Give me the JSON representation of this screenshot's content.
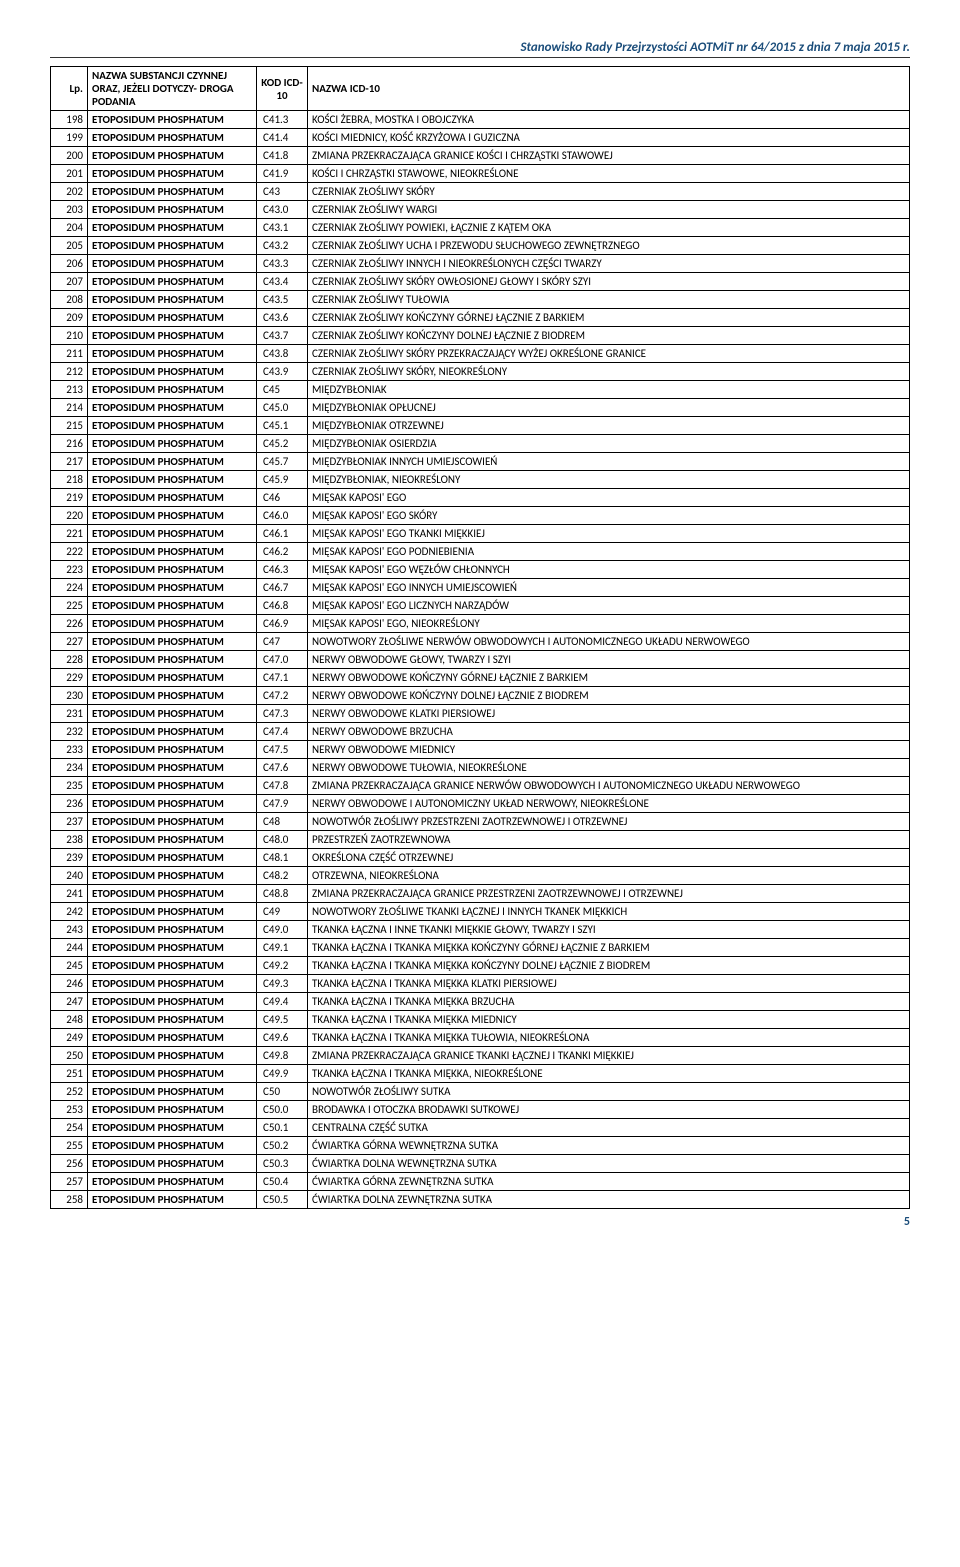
{
  "header": "Stanowisko Rady Przejrzystości AOTMiT nr 64/2015 z dnia 7 maja 2015 r.",
  "pageNumber": "5",
  "columns": {
    "lp": "Lp.",
    "substance": "NAZWA SUBSTANCJI CZYNNEJ ORAZ, JEŻELI DOTYCZY- DROGA PODANIA",
    "icd": "KOD ICD-10",
    "name": "NAZWA ICD-10"
  },
  "rows": [
    {
      "lp": "198",
      "sub": "ETOPOSIDUM PHOSPHATUM",
      "icd": "C41.3",
      "name": "KOŚCI ŻEBRA, MOSTKA I OBOJCZYKA"
    },
    {
      "lp": "199",
      "sub": "ETOPOSIDUM PHOSPHATUM",
      "icd": "C41.4",
      "name": "KOŚCI MIEDNICY, KOŚĆ KRZYŻOWA I GUZICZNA"
    },
    {
      "lp": "200",
      "sub": "ETOPOSIDUM PHOSPHATUM",
      "icd": "C41.8",
      "name": "ZMIANA PRZEKRACZAJĄCA GRANICE KOŚCI I CHRZĄSTKI STAWOWEJ"
    },
    {
      "lp": "201",
      "sub": "ETOPOSIDUM PHOSPHATUM",
      "icd": "C41.9",
      "name": "KOŚCI I CHRZĄSTKI STAWOWE, NIEOKREŚLONE"
    },
    {
      "lp": "202",
      "sub": "ETOPOSIDUM PHOSPHATUM",
      "icd": "C43",
      "name": "CZERNIAK ZŁOŚLIWY SKÓRY"
    },
    {
      "lp": "203",
      "sub": "ETOPOSIDUM PHOSPHATUM",
      "icd": "C43.0",
      "name": "CZERNIAK ZŁOŚLIWY WARGI"
    },
    {
      "lp": "204",
      "sub": "ETOPOSIDUM PHOSPHATUM",
      "icd": "C43.1",
      "name": "CZERNIAK ZŁOŚLIWY POWIEKI, ŁĄCZNIE Z KĄTEM OKA"
    },
    {
      "lp": "205",
      "sub": "ETOPOSIDUM PHOSPHATUM",
      "icd": "C43.2",
      "name": "CZERNIAK ZŁOŚLIWY UCHA I PRZEWODU SŁUCHOWEGO ZEWNĘTRZNEGO"
    },
    {
      "lp": "206",
      "sub": "ETOPOSIDUM PHOSPHATUM",
      "icd": "C43.3",
      "name": "CZERNIAK ZŁOŚLIWY INNYCH I NIEOKREŚLONYCH CZĘŚCI TWARZY"
    },
    {
      "lp": "207",
      "sub": "ETOPOSIDUM PHOSPHATUM",
      "icd": "C43.4",
      "name": "CZERNIAK ZŁOŚLIWY SKÓRY OWŁOSIONEJ GŁOWY I SKÓRY SZYI"
    },
    {
      "lp": "208",
      "sub": "ETOPOSIDUM PHOSPHATUM",
      "icd": "C43.5",
      "name": "CZERNIAK ZŁOŚLIWY TUŁOWIA"
    },
    {
      "lp": "209",
      "sub": "ETOPOSIDUM PHOSPHATUM",
      "icd": "C43.6",
      "name": "CZERNIAK ZŁOŚLIWY KOŃCZYNY GÓRNEJ ŁĄCZNIE Z BARKIEM"
    },
    {
      "lp": "210",
      "sub": "ETOPOSIDUM PHOSPHATUM",
      "icd": "C43.7",
      "name": "CZERNIAK ZŁOŚLIWY KOŃCZYNY DOLNEJ ŁĄCZNIE Z BIODREM"
    },
    {
      "lp": "211",
      "sub": "ETOPOSIDUM PHOSPHATUM",
      "icd": "C43.8",
      "name": "CZERNIAK ZŁOŚLIWY SKÓRY PRZEKRACZAJĄCY WYŻEJ OKREŚLONE GRANICE"
    },
    {
      "lp": "212",
      "sub": "ETOPOSIDUM PHOSPHATUM",
      "icd": "C43.9",
      "name": "CZERNIAK ZŁOŚLIWY SKÓRY, NIEOKREŚLONY"
    },
    {
      "lp": "213",
      "sub": "ETOPOSIDUM PHOSPHATUM",
      "icd": "C45",
      "name": "MIĘDZYBŁONIAK"
    },
    {
      "lp": "214",
      "sub": "ETOPOSIDUM PHOSPHATUM",
      "icd": "C45.0",
      "name": "MIĘDZYBŁONIAK OPŁUCNEJ"
    },
    {
      "lp": "215",
      "sub": "ETOPOSIDUM PHOSPHATUM",
      "icd": "C45.1",
      "name": "MIĘDZYBŁONIAK OTRZEWNEJ"
    },
    {
      "lp": "216",
      "sub": "ETOPOSIDUM PHOSPHATUM",
      "icd": "C45.2",
      "name": "MIĘDZYBŁONIAK OSIERDZIA"
    },
    {
      "lp": "217",
      "sub": "ETOPOSIDUM PHOSPHATUM",
      "icd": "C45.7",
      "name": "MIĘDZYBŁONIAK INNYCH UMIEJSCOWIEŃ"
    },
    {
      "lp": "218",
      "sub": "ETOPOSIDUM PHOSPHATUM",
      "icd": "C45.9",
      "name": "MIĘDZYBŁONIAK, NIEOKREŚLONY"
    },
    {
      "lp": "219",
      "sub": "ETOPOSIDUM PHOSPHATUM",
      "icd": "C46",
      "name": "MIĘSAK KAPOSI' EGO"
    },
    {
      "lp": "220",
      "sub": "ETOPOSIDUM PHOSPHATUM",
      "icd": "C46.0",
      "name": "MIĘSAK KAPOSI' EGO SKÓRY"
    },
    {
      "lp": "221",
      "sub": "ETOPOSIDUM PHOSPHATUM",
      "icd": "C46.1",
      "name": "MIĘSAK KAPOSI' EGO TKANKI MIĘKKIEJ"
    },
    {
      "lp": "222",
      "sub": "ETOPOSIDUM PHOSPHATUM",
      "icd": "C46.2",
      "name": "MIĘSAK KAPOSI' EGO PODNIEBIENIA"
    },
    {
      "lp": "223",
      "sub": "ETOPOSIDUM PHOSPHATUM",
      "icd": "C46.3",
      "name": "MIĘSAK KAPOSI' EGO WĘZŁÓW CHŁONNYCH"
    },
    {
      "lp": "224",
      "sub": "ETOPOSIDUM PHOSPHATUM",
      "icd": "C46.7",
      "name": "MIĘSAK KAPOSI' EGO INNYCH UMIEJSCOWIEŃ"
    },
    {
      "lp": "225",
      "sub": "ETOPOSIDUM PHOSPHATUM",
      "icd": "C46.8",
      "name": "MIĘSAK KAPOSI' EGO LICZNYCH NARZĄDÓW"
    },
    {
      "lp": "226",
      "sub": "ETOPOSIDUM PHOSPHATUM",
      "icd": "C46.9",
      "name": "MIĘSAK KAPOSI' EGO, NIEOKREŚLONY"
    },
    {
      "lp": "227",
      "sub": "ETOPOSIDUM PHOSPHATUM",
      "icd": "C47",
      "name": "NOWOTWORY ZŁOŚLIWE NERWÓW OBWODOWYCH I AUTONOMICZNEGO UKŁADU NERWOWEGO"
    },
    {
      "lp": "228",
      "sub": "ETOPOSIDUM PHOSPHATUM",
      "icd": "C47.0",
      "name": "NERWY OBWODOWE GŁOWY, TWARZY I SZYI"
    },
    {
      "lp": "229",
      "sub": "ETOPOSIDUM PHOSPHATUM",
      "icd": "C47.1",
      "name": "NERWY OBWODOWE KOŃCZYNY GÓRNEJ ŁĄCZNIE Z BARKIEM"
    },
    {
      "lp": "230",
      "sub": "ETOPOSIDUM PHOSPHATUM",
      "icd": "C47.2",
      "name": "NERWY OBWODOWE KOŃCZYNY DOLNEJ ŁĄCZNIE Z BIODREM"
    },
    {
      "lp": "231",
      "sub": "ETOPOSIDUM PHOSPHATUM",
      "icd": "C47.3",
      "name": "NERWY OBWODOWE KLATKI PIERSIOWEJ"
    },
    {
      "lp": "232",
      "sub": "ETOPOSIDUM PHOSPHATUM",
      "icd": "C47.4",
      "name": "NERWY OBWODOWE BRZUCHA"
    },
    {
      "lp": "233",
      "sub": "ETOPOSIDUM PHOSPHATUM",
      "icd": "C47.5",
      "name": "NERWY OBWODOWE MIEDNICY"
    },
    {
      "lp": "234",
      "sub": "ETOPOSIDUM PHOSPHATUM",
      "icd": "C47.6",
      "name": "NERWY OBWODOWE TUŁOWIA, NIEOKREŚLONE"
    },
    {
      "lp": "235",
      "sub": "ETOPOSIDUM PHOSPHATUM",
      "icd": "C47.8",
      "name": "ZMIANA PRZEKRACZAJĄCA GRANICE NERWÓW OBWODOWYCH I AUTONOMICZNEGO UKŁADU NERWOWEGO"
    },
    {
      "lp": "236",
      "sub": "ETOPOSIDUM PHOSPHATUM",
      "icd": "C47.9",
      "name": "NERWY OBWODOWE I AUTONOMICZNY UKŁAD NERWOWY, NIEOKREŚLONE"
    },
    {
      "lp": "237",
      "sub": "ETOPOSIDUM PHOSPHATUM",
      "icd": "C48",
      "name": "NOWOTWÓR ZŁOŚLIWY PRZESTRZENI ZAOTRZEWNOWEJ I OTRZEWNEJ"
    },
    {
      "lp": "238",
      "sub": "ETOPOSIDUM PHOSPHATUM",
      "icd": "C48.0",
      "name": "PRZESTRZEŃ ZAOTRZEWNOWA"
    },
    {
      "lp": "239",
      "sub": "ETOPOSIDUM PHOSPHATUM",
      "icd": "C48.1",
      "name": "OKREŚLONA CZĘŚĆ OTRZEWNEJ"
    },
    {
      "lp": "240",
      "sub": "ETOPOSIDUM PHOSPHATUM",
      "icd": "C48.2",
      "name": "OTRZEWNA, NIEOKREŚLONA"
    },
    {
      "lp": "241",
      "sub": "ETOPOSIDUM PHOSPHATUM",
      "icd": "C48.8",
      "name": "ZMIANA PRZEKRACZAJĄCA GRANICE PRZESTRZENI ZAOTRZEWNOWEJ I OTRZEWNEJ"
    },
    {
      "lp": "242",
      "sub": "ETOPOSIDUM PHOSPHATUM",
      "icd": "C49",
      "name": "NOWOTWORY ZŁOŚLIWE TKANKI ŁĄCZNEJ I INNYCH TKANEK MIĘKKICH"
    },
    {
      "lp": "243",
      "sub": "ETOPOSIDUM PHOSPHATUM",
      "icd": "C49.0",
      "name": "TKANKA ŁĄCZNA I INNE TKANKI MIĘKKIE GŁOWY, TWARZY I SZYI"
    },
    {
      "lp": "244",
      "sub": "ETOPOSIDUM PHOSPHATUM",
      "icd": "C49.1",
      "name": "TKANKA ŁĄCZNA I TKANKA MIĘKKA KOŃCZYNY GÓRNEJ ŁĄCZNIE Z BARKIEM"
    },
    {
      "lp": "245",
      "sub": "ETOPOSIDUM PHOSPHATUM",
      "icd": "C49.2",
      "name": "TKANKA ŁĄCZNA I TKANKA MIĘKKA KOŃCZYNY DOLNEJ ŁĄCZNIE Z BIODREM"
    },
    {
      "lp": "246",
      "sub": "ETOPOSIDUM PHOSPHATUM",
      "icd": "C49.3",
      "name": "TKANKA ŁĄCZNA I TKANKA MIĘKKA KLATKI PIERSIOWEJ"
    },
    {
      "lp": "247",
      "sub": "ETOPOSIDUM PHOSPHATUM",
      "icd": "C49.4",
      "name": "TKANKA ŁĄCZNA I TKANKA MIĘKKA BRZUCHA"
    },
    {
      "lp": "248",
      "sub": "ETOPOSIDUM PHOSPHATUM",
      "icd": "C49.5",
      "name": "TKANKA ŁĄCZNA I TKANKA MIĘKKA MIEDNICY"
    },
    {
      "lp": "249",
      "sub": "ETOPOSIDUM PHOSPHATUM",
      "icd": "C49.6",
      "name": "TKANKA ŁĄCZNA I TKANKA MIĘKKA TUŁOWIA, NIEOKREŚLONA"
    },
    {
      "lp": "250",
      "sub": "ETOPOSIDUM PHOSPHATUM",
      "icd": "C49.8",
      "name": "ZMIANA PRZEKRACZAJĄCA GRANICE TKANKI ŁĄCZNEJ I TKANKI MIĘKKIEJ"
    },
    {
      "lp": "251",
      "sub": "ETOPOSIDUM PHOSPHATUM",
      "icd": "C49.9",
      "name": "TKANKA ŁĄCZNA I TKANKA MIĘKKA, NIEOKREŚLONE"
    },
    {
      "lp": "252",
      "sub": "ETOPOSIDUM PHOSPHATUM",
      "icd": "C50",
      "name": "NOWOTWÓR ZŁOŚLIWY SUTKA"
    },
    {
      "lp": "253",
      "sub": "ETOPOSIDUM PHOSPHATUM",
      "icd": "C50.0",
      "name": "BRODAWKA I OTOCZKA BRODAWKI SUTKOWEJ"
    },
    {
      "lp": "254",
      "sub": "ETOPOSIDUM PHOSPHATUM",
      "icd": "C50.1",
      "name": "CENTRALNA CZĘŚĆ SUTKA"
    },
    {
      "lp": "255",
      "sub": "ETOPOSIDUM PHOSPHATUM",
      "icd": "C50.2",
      "name": "ĆWIARTKA GÓRNA WEWNĘTRZNA SUTKA"
    },
    {
      "lp": "256",
      "sub": "ETOPOSIDUM PHOSPHATUM",
      "icd": "C50.3",
      "name": "ĆWIARTKA DOLNA WEWNĘTRZNA SUTKA"
    },
    {
      "lp": "257",
      "sub": "ETOPOSIDUM PHOSPHATUM",
      "icd": "C50.4",
      "name": "ĆWIARTKA GÓRNA ZEWNĘTRZNA SUTKA"
    },
    {
      "lp": "258",
      "sub": "ETOPOSIDUM PHOSPHATUM",
      "icd": "C50.5",
      "name": "ĆWIARTKA DOLNA ZEWNĘTRZNA SUTKA"
    }
  ]
}
